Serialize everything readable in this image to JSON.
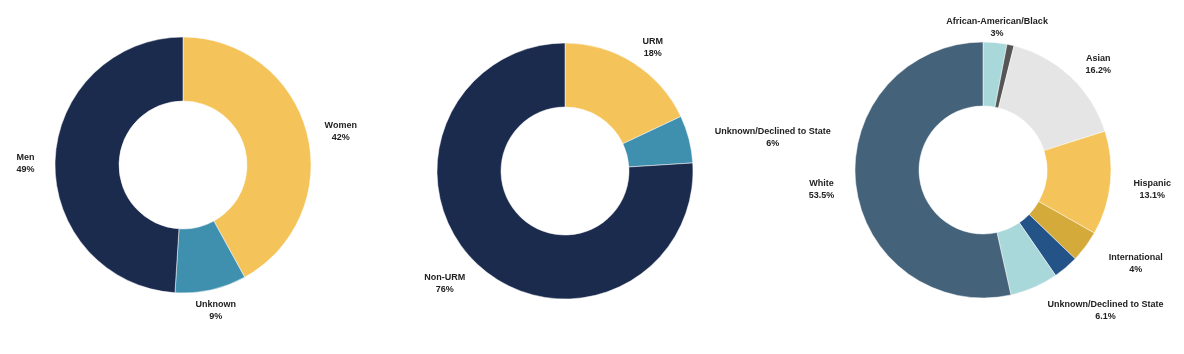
{
  "chart_data": [
    {
      "type": "donut",
      "categories": [
        "Women",
        "Unknown",
        "Men"
      ],
      "values": [
        42,
        9,
        49
      ],
      "colors": [
        "#f4c35a",
        "#3f8fae",
        "#1b2b4e"
      ],
      "value_labels": [
        "42%",
        "9%",
        "49%"
      ]
    },
    {
      "type": "donut",
      "categories": [
        "URM",
        "Unknown/Declined to State",
        "Non-URM"
      ],
      "values": [
        18,
        6,
        76
      ],
      "colors": [
        "#f4c35a",
        "#3f8fae",
        "#1b2b4e"
      ],
      "value_labels": [
        "18%",
        "6%",
        "76%"
      ]
    },
    {
      "type": "donut",
      "categories": [
        "African-American/Black",
        null,
        "Asian",
        "Hispanic",
        "International",
        null,
        "Unknown/Declined to State",
        "White"
      ],
      "values": [
        3,
        0.9,
        16.2,
        13.1,
        4,
        3.2,
        6.1,
        53.5
      ],
      "colors": [
        "#a8d8da",
        "#555555",
        "#e5e5e5",
        "#f4c35a",
        "#d4aa3a",
        "#245387",
        "#a8d8da",
        "#44627a"
      ],
      "value_labels": [
        "3%",
        null,
        "16.2%",
        "13.1%",
        "4%",
        null,
        "6.1%",
        "53.5%"
      ]
    }
  ]
}
